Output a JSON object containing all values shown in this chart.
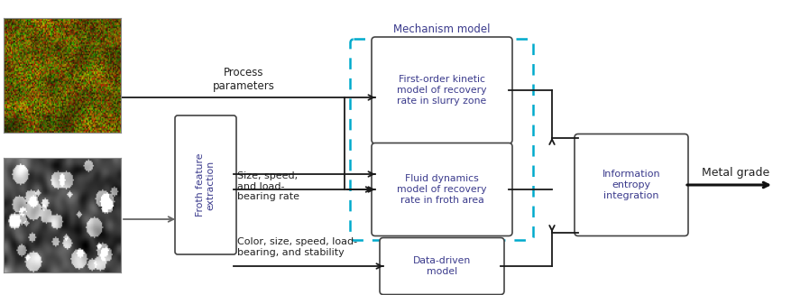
{
  "bg_color": "#ffffff",
  "box_text_color": "#3a3a8c",
  "arrow_color": "#1a1a1a",
  "dashed_box_color": "#00aacc",
  "mechanism_label": "Mechanism model",
  "box1_text": "First-order kinetic\nmodel of recovery\nrate in slurry zone",
  "box2_text": "Fluid dynamics\nmodel of recovery\nrate in froth area",
  "box3_text": "Data-driven\nmodel",
  "box4_text": "Froth feature\nextraction",
  "box5_text": "Information\nentropy\nintegration",
  "label_process": "Process\nparameters",
  "label_size": "Size, speed,\nand load-\nbearing rate",
  "label_color": "Color, size, speed, load-\nbearing, and stability",
  "label_metal": "Metal grade"
}
